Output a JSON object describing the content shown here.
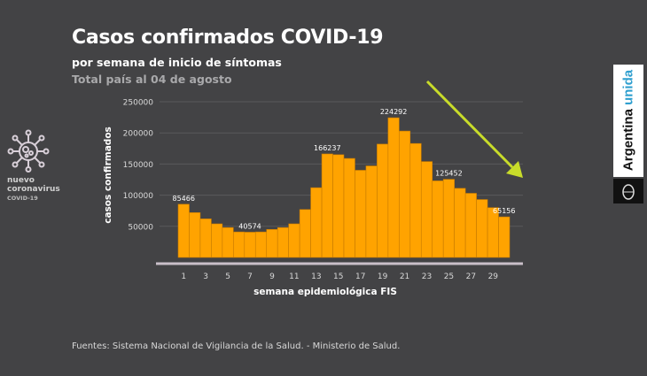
{
  "title": "Casos confirmados COVID-19",
  "subtitle": "por semana de inicio de síntomas",
  "note": "Total país al 04 de agosto",
  "source": "Fuentes: Sistema Nacional de Vigilancia de la Salud. - Ministerio de Salud.",
  "logo": {
    "line1": "nuevo",
    "line2": "coronavirus",
    "line3": "COVID-19"
  },
  "brand": {
    "word1": "Argentina",
    "word2": "unida"
  },
  "colors": {
    "bar": "#ffa300",
    "background": "#434345",
    "arrow": "#c8dc2a",
    "axis": "#c9bfc9"
  },
  "chart_data": {
    "type": "bar",
    "title": "Casos confirmados COVID-19",
    "xlabel": "semana epidemiológica FIS",
    "ylabel": "casos confirmados",
    "ylim": [
      0,
      250000
    ],
    "yticks": [
      50000,
      100000,
      150000,
      200000,
      250000
    ],
    "ytick_labels": [
      "50000",
      "100000",
      "150000",
      "200000",
      "250000"
    ],
    "categories": [
      1,
      2,
      3,
      4,
      5,
      6,
      7,
      8,
      9,
      10,
      11,
      12,
      13,
      14,
      15,
      16,
      17,
      18,
      19,
      20,
      21,
      22,
      23,
      24,
      25,
      26,
      27,
      28,
      29,
      30
    ],
    "xtick_labels": [
      "1",
      "3",
      "5",
      "7",
      "9",
      "11",
      "13",
      "15",
      "17",
      "19",
      "21",
      "23",
      "25",
      "27",
      "29"
    ],
    "values": [
      85466,
      72000,
      62000,
      54000,
      48000,
      41000,
      40574,
      41000,
      45000,
      48000,
      54000,
      77000,
      112000,
      166237,
      165000,
      159000,
      140000,
      147000,
      182000,
      224292,
      203000,
      183000,
      154000,
      123000,
      125452,
      111000,
      103000,
      93000,
      80000,
      65156
    ],
    "data_labels": {
      "1": "85466",
      "7": "40574",
      "14": "166237",
      "20": "224292",
      "25": "125452",
      "30": "65156"
    },
    "grid": true,
    "annotation": "downward-trend-arrow"
  }
}
